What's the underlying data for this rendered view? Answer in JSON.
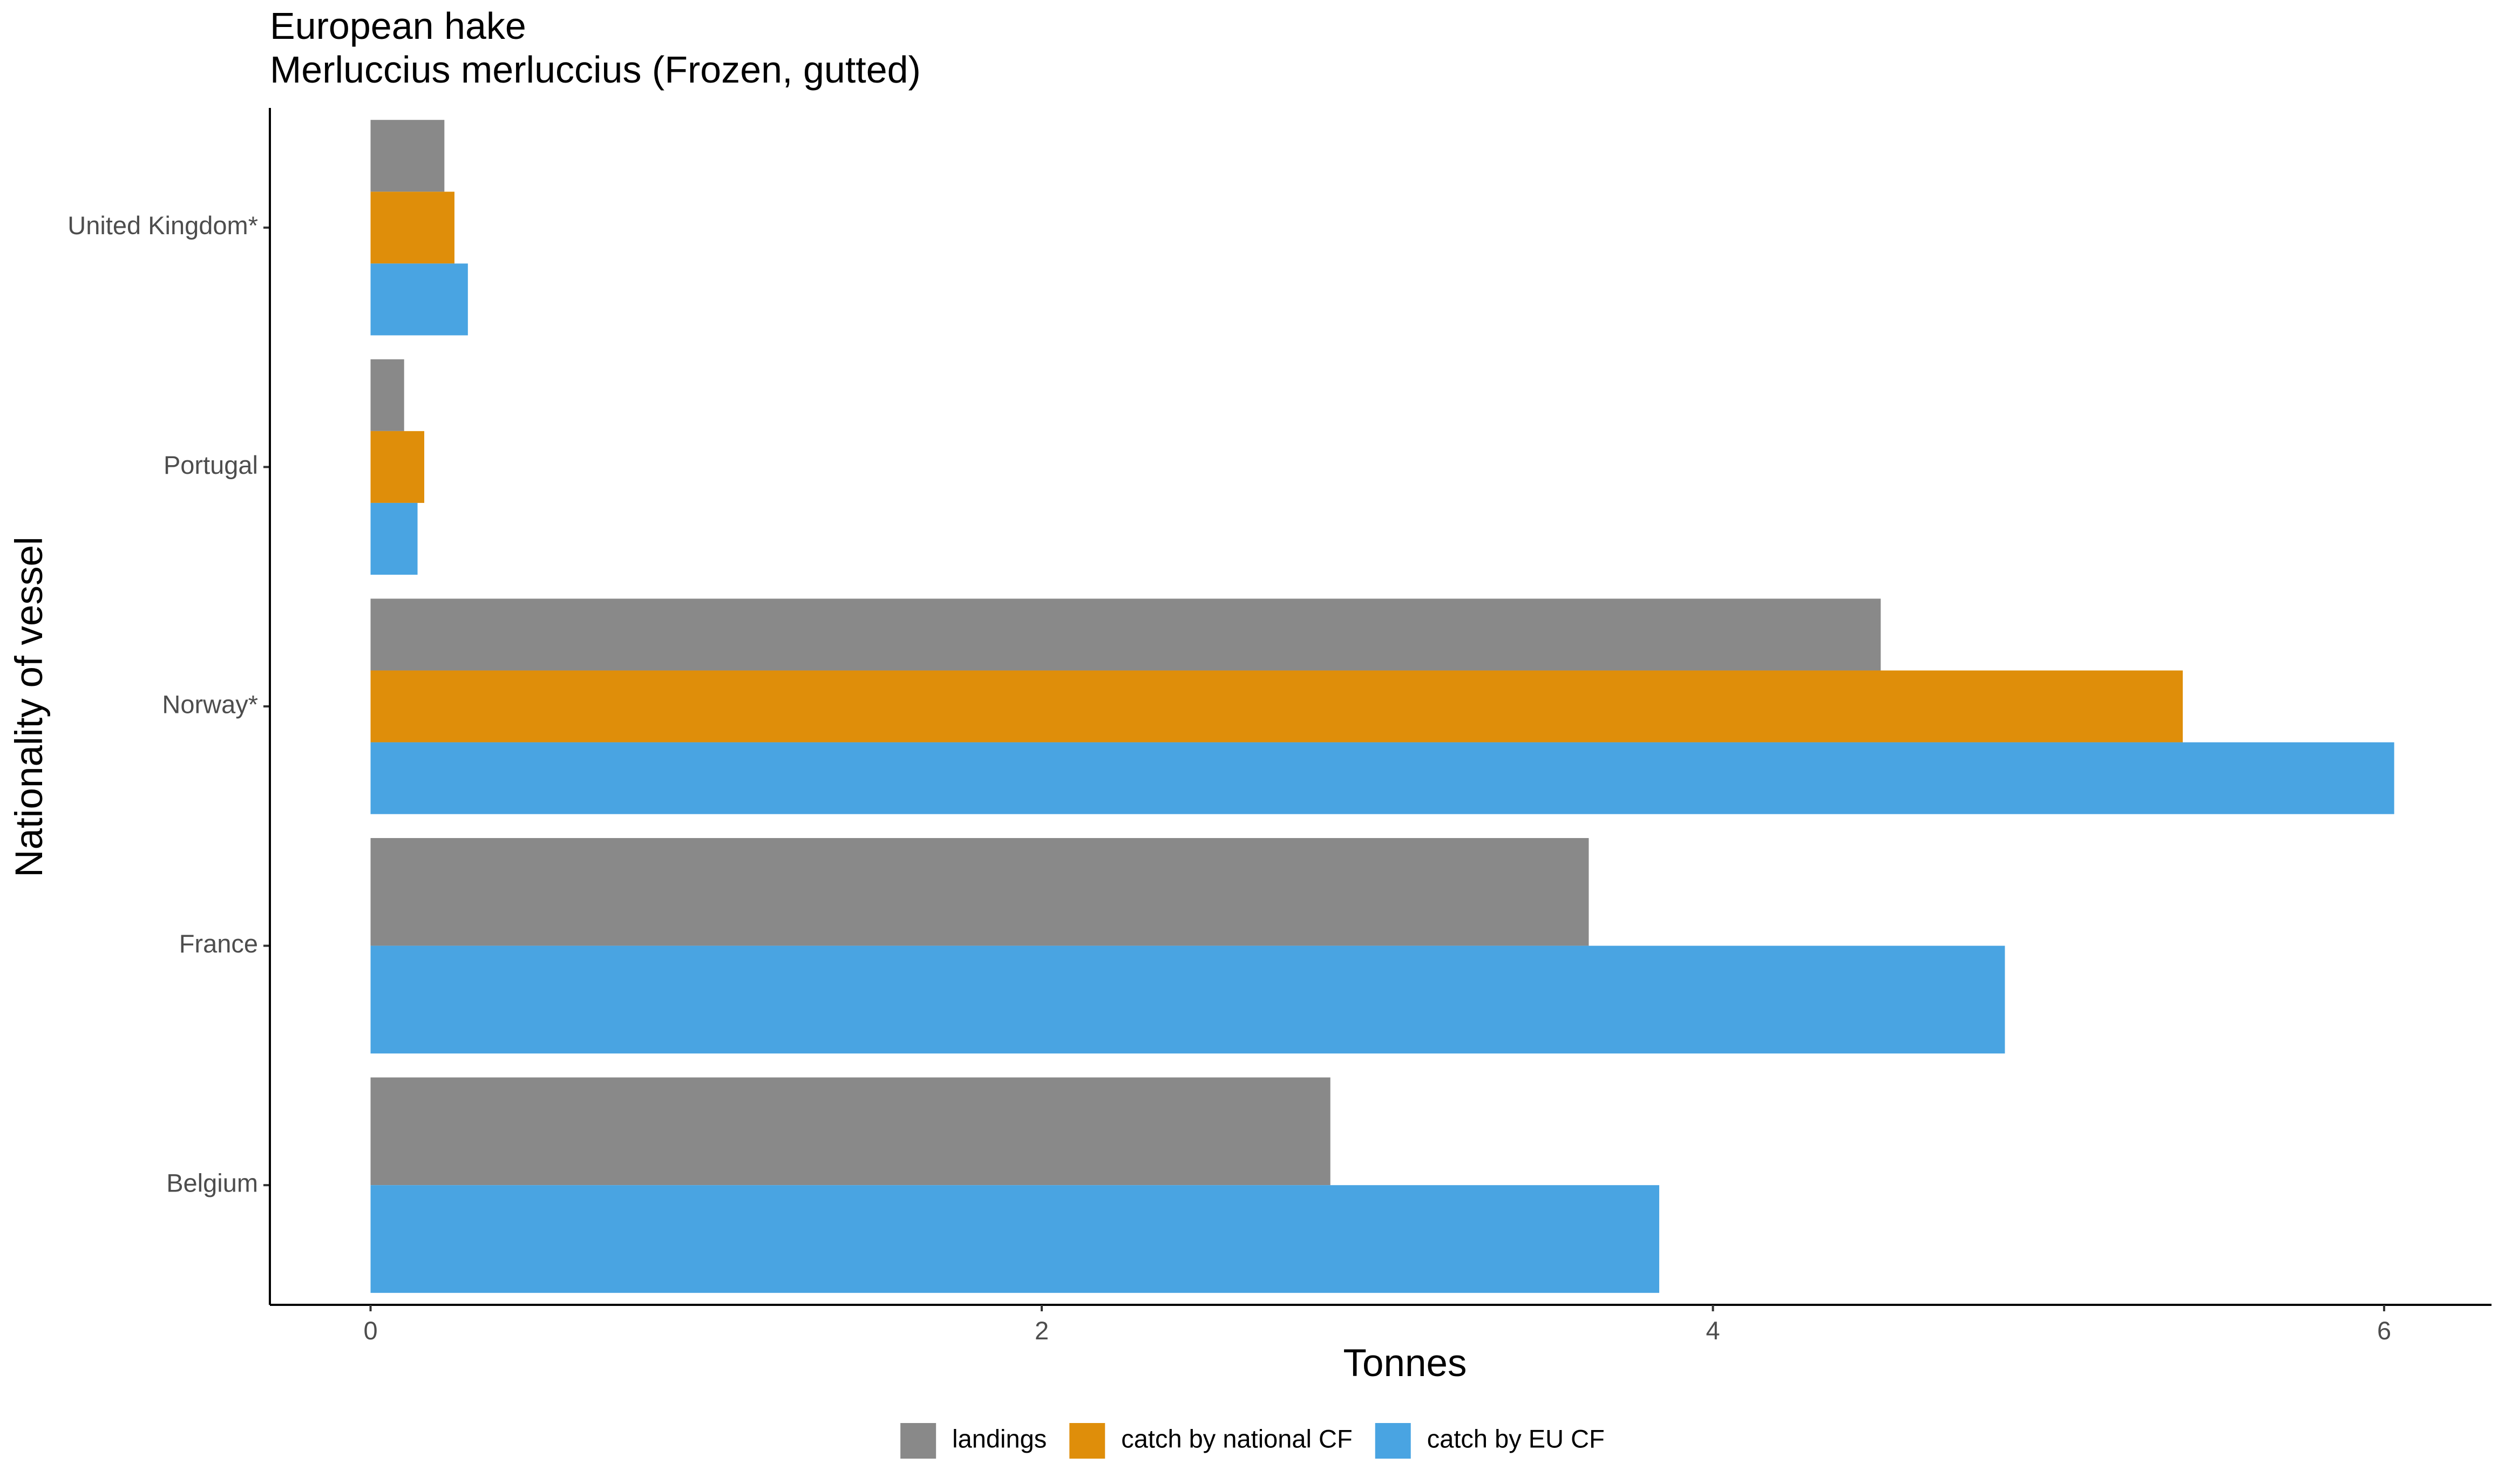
{
  "chart_data": {
    "type": "bar",
    "orientation": "horizontal",
    "title": "European hake",
    "subtitle": "Merluccius merluccius (Frozen, gutted)",
    "xlabel": "Tonnes",
    "ylabel": "Nationality of vessel",
    "xlim": [
      -0.3,
      6.32
    ],
    "x_ticks": [
      0,
      2,
      4,
      6
    ],
    "grid": false,
    "legend_position": "bottom",
    "categories": [
      "Belgium",
      "France",
      "Norway*",
      "Portugal",
      "United Kingdom*"
    ],
    "series": [
      {
        "name": "landings",
        "color": "#898989",
        "values": [
          2.86,
          3.63,
          4.5,
          0.1,
          0.22
        ]
      },
      {
        "name": "catch by national CF",
        "color": "#df8e0a",
        "values": [
          null,
          null,
          5.4,
          0.16,
          0.25
        ]
      },
      {
        "name": "catch by EU CF",
        "color": "#49a4e2",
        "values": [
          3.84,
          4.87,
          6.03,
          0.14,
          0.29
        ]
      }
    ]
  }
}
